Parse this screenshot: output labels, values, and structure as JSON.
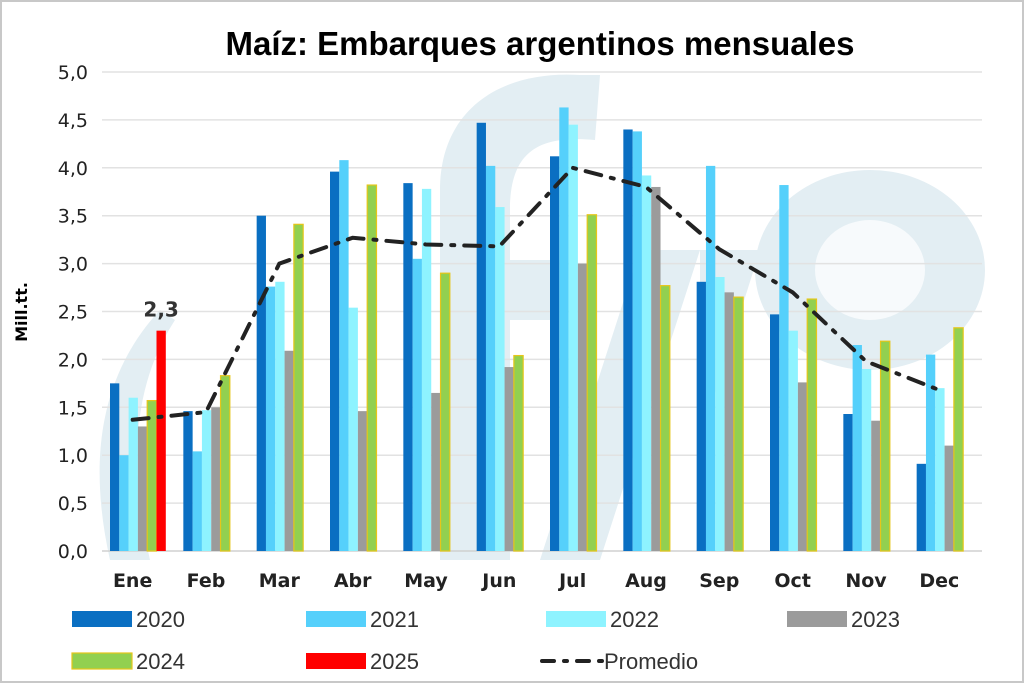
{
  "chart_data": {
    "type": "bar",
    "title": "Maíz: Embarques argentinos mensuales",
    "xlabel": "",
    "ylabel": "Mill.tt.",
    "ylim": [
      0,
      5
    ],
    "yticks": [
      "0,0",
      "0,5",
      "1,0",
      "1,5",
      "2,0",
      "2,5",
      "3,0",
      "3,5",
      "4,0",
      "4,5",
      "5,0"
    ],
    "ytick_values": [
      0,
      0.5,
      1,
      1.5,
      2,
      2.5,
      3,
      3.5,
      4,
      4.5,
      5
    ],
    "grid": true,
    "legend_position": "bottom",
    "categories": [
      "Ene",
      "Feb",
      "Mar",
      "Abr",
      "May",
      "Jun",
      "Jul",
      "Aug",
      "Sep",
      "Oct",
      "Nov",
      "Dec"
    ],
    "series": [
      {
        "name": "2020",
        "color": "#0a6fc2",
        "values": [
          1.75,
          1.46,
          3.5,
          3.96,
          3.84,
          4.47,
          4.12,
          4.4,
          2.81,
          2.47,
          1.43,
          0.91
        ]
      },
      {
        "name": "2021",
        "color": "#55d0fb",
        "values": [
          1.0,
          1.04,
          2.76,
          4.08,
          3.05,
          4.02,
          4.63,
          4.38,
          4.02,
          3.82,
          2.15,
          2.05
        ]
      },
      {
        "name": "2022",
        "color": "#8ef3ff",
        "values": [
          1.6,
          1.47,
          2.81,
          2.54,
          3.78,
          3.59,
          4.45,
          3.92,
          2.86,
          2.3,
          1.9,
          1.7
        ]
      },
      {
        "name": "2023",
        "color": "#9b9b9b",
        "values": [
          1.3,
          1.5,
          2.09,
          1.46,
          1.65,
          1.92,
          3.0,
          3.8,
          2.7,
          1.76,
          1.36,
          1.1
        ]
      },
      {
        "name": "2024",
        "color": "#92d050",
        "border": "#e6c619",
        "values": [
          1.57,
          1.83,
          3.41,
          3.82,
          2.9,
          2.04,
          3.51,
          2.77,
          2.65,
          2.63,
          2.19,
          2.33
        ]
      },
      {
        "name": "2025",
        "color": "#ff0000",
        "values": [
          2.3,
          null,
          null,
          null,
          null,
          null,
          null,
          null,
          null,
          null,
          null,
          null
        ]
      }
    ],
    "line_series": {
      "name": "Promedio",
      "color": "#222222",
      "style": "dash-dot",
      "values": [
        1.37,
        1.45,
        3.0,
        3.27,
        3.2,
        3.18,
        4.0,
        3.8,
        3.15,
        2.7,
        1.98,
        1.68
      ]
    },
    "annotations": [
      {
        "series": "2025",
        "category": "Ene",
        "text": "2,3"
      }
    ],
    "legend": [
      {
        "label": "2020",
        "kind": "bar"
      },
      {
        "label": "2021",
        "kind": "bar"
      },
      {
        "label": "2022",
        "kind": "bar"
      },
      {
        "label": "2023",
        "kind": "bar"
      },
      {
        "label": "2024",
        "kind": "bar"
      },
      {
        "label": "2025",
        "kind": "bar"
      },
      {
        "label": "Promedio",
        "kind": "line"
      }
    ],
    "watermark": "fyo"
  }
}
